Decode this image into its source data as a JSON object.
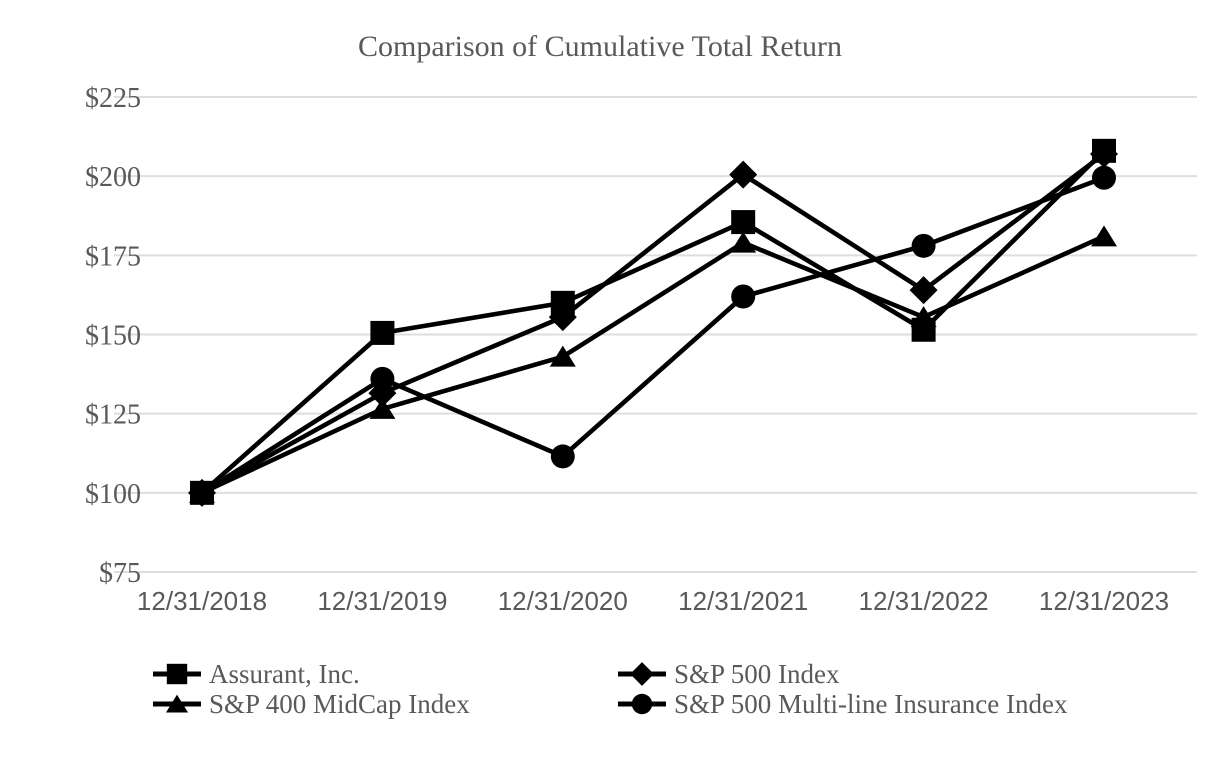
{
  "chart_data": {
    "type": "line",
    "title": "Comparison of Cumulative Total Return",
    "categories": [
      "12/31/2018",
      "12/31/2019",
      "12/31/2020",
      "12/31/2021",
      "12/31/2022",
      "12/31/2023"
    ],
    "series": [
      {
        "name": "Assurant, Inc.",
        "marker": "square",
        "values": [
          100,
          150.5,
          160,
          185.5,
          151.5,
          208
        ]
      },
      {
        "name": "S&P 500 Index",
        "marker": "diamond",
        "values": [
          100,
          131.5,
          155.5,
          200.5,
          164,
          207
        ]
      },
      {
        "name": "S&P 400 MidCap Index",
        "marker": "triangle",
        "values": [
          100,
          126.5,
          143,
          179,
          155.5,
          181
        ]
      },
      {
        "name": "S&P 500 Multi-line Insurance Index",
        "marker": "circle",
        "values": [
          100,
          136,
          111.5,
          162,
          178,
          199.5
        ]
      }
    ],
    "ylim": [
      75,
      225
    ],
    "ytick_step": 25,
    "ytick_prefix": "$",
    "ytick_labels": [
      "$225",
      "$200",
      "$175",
      "$150",
      "$125",
      "$100",
      "$75"
    ],
    "grid": "horizontal",
    "legend_position": "bottom",
    "colors": {
      "series_line": "#000000",
      "marker_fill": "#000000",
      "gridline": "#DEDEDE",
      "text": "#595959",
      "background": "#FFFFFF"
    }
  }
}
